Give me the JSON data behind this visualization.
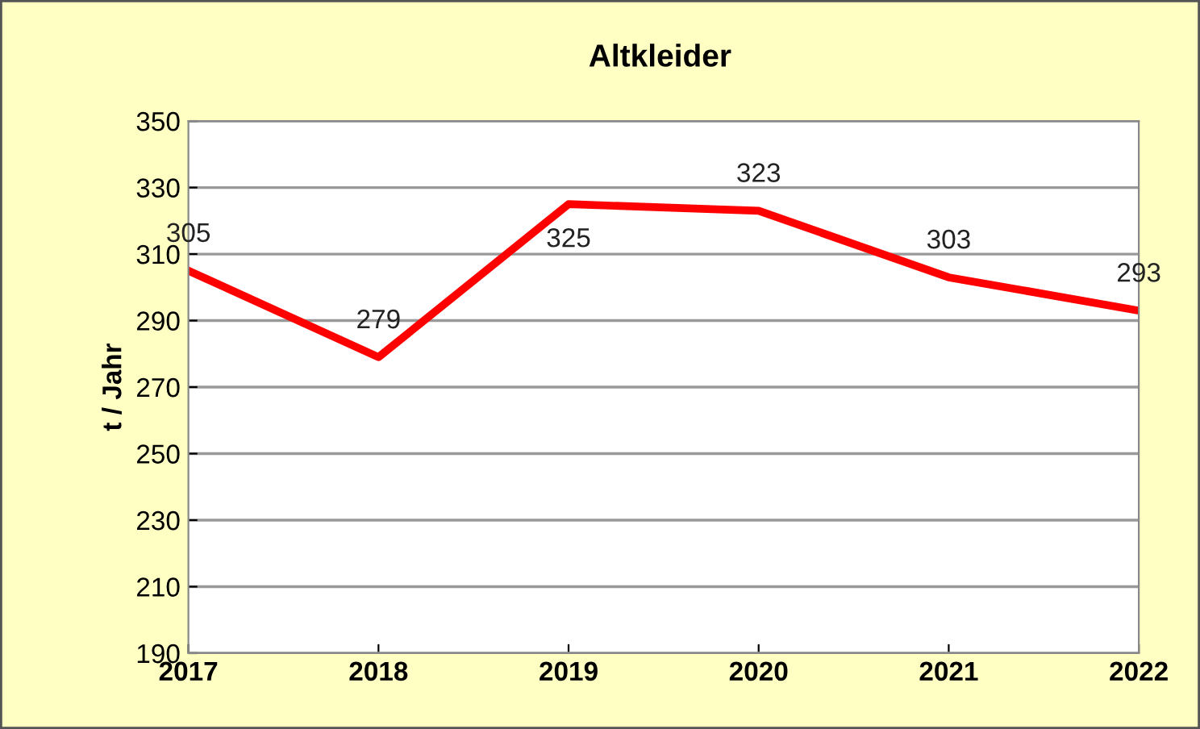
{
  "chart_data": {
    "type": "line",
    "title": "Altkleider",
    "ylabel": "t / Jahr",
    "x": [
      2017,
      2018,
      2019,
      2020,
      2021,
      2022
    ],
    "series": [
      {
        "color": "#ff0000",
        "values": [
          305,
          279,
          325,
          323,
          303,
          293
        ]
      }
    ],
    "xlim": [
      2017,
      2022
    ],
    "xticks": [
      2017,
      2018,
      2019,
      2020,
      2021,
      2022
    ],
    "ylim": [
      190,
      350
    ],
    "yticks": [
      190,
      210,
      230,
      250,
      270,
      290,
      310,
      330,
      350
    ],
    "grid": "y",
    "data_labels": true,
    "legend": false,
    "marker": "none",
    "line_style": "solid"
  }
}
